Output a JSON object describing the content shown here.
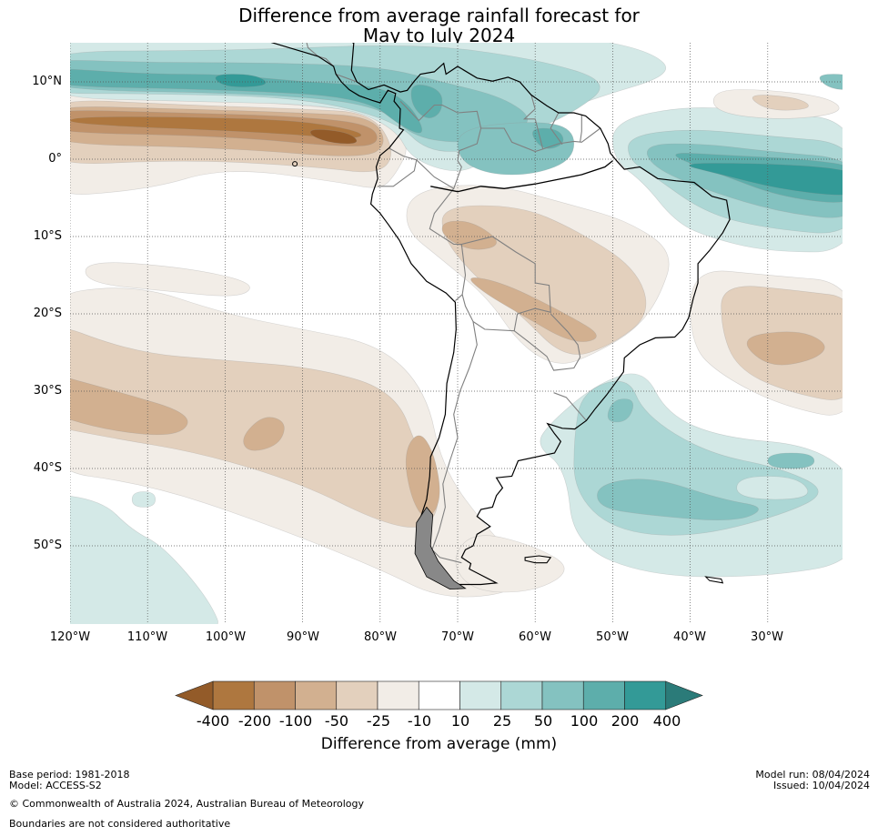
{
  "title": {
    "line1": "Difference from average rainfall forecast for",
    "line2": "May to July 2024"
  },
  "map": {
    "region": "South America",
    "lon_range": [
      -120,
      -20
    ],
    "lat_range": [
      -60,
      15
    ],
    "y_axis_labels": [
      "10°N",
      "0°",
      "10°S",
      "20°S",
      "30°S",
      "40°S",
      "50°S"
    ],
    "y_axis_values": [
      10,
      0,
      -10,
      -20,
      -30,
      -40,
      -50
    ],
    "x_axis_labels": [
      "120°W",
      "110°W",
      "100°W",
      "90°W",
      "80°W",
      "70°W",
      "60°W",
      "50°W",
      "40°W",
      "30°W"
    ],
    "x_axis_values": [
      -120,
      -110,
      -100,
      -90,
      -80,
      -70,
      -60,
      -50,
      -40,
      -30
    ],
    "gridlines": true
  },
  "colorbar": {
    "label": "Difference from average (mm)",
    "ticks": [
      "-400",
      "-200",
      "-100",
      "-50",
      "-25",
      "-10",
      "10",
      "25",
      "50",
      "100",
      "200",
      "400"
    ],
    "colors": [
      "#935b29",
      "#ae773f",
      "#c0926a",
      "#d2b090",
      "#e3d0bd",
      "#f2ede7",
      "#ffffff",
      "#d4e9e7",
      "#acd7d5",
      "#84c2c0",
      "#5daeab",
      "#339a97",
      "#2b7b79"
    ]
  },
  "footer": {
    "base_period": "Base period: 1981-2018",
    "model": "Model: ACCESS-S2",
    "copyright": "© Commonwealth of Australia 2024, Australian Bureau of Meteorology",
    "boundaries": "Boundaries are not considered authoritative",
    "model_run": "Model run: 08/04/2024",
    "issued": "Issued: 10/04/2024"
  }
}
